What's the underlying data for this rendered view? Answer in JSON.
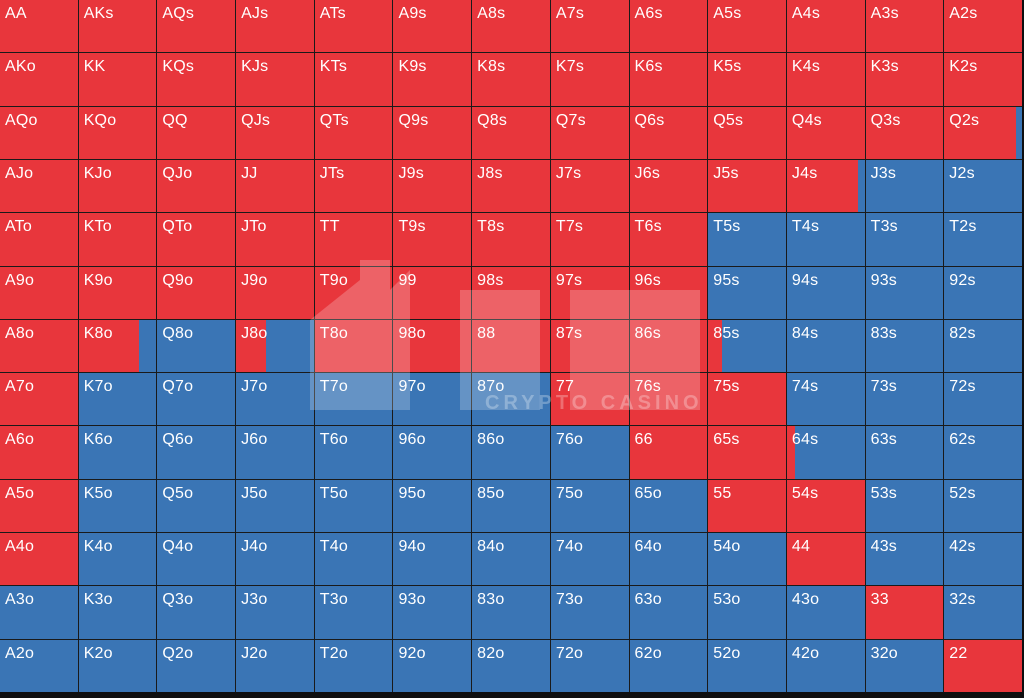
{
  "colors": {
    "raise": "#e8363c",
    "fold": "#3a75b5"
  },
  "grid": [
    [
      "AA",
      "AKs",
      "AQs",
      "AJs",
      "ATs",
      "A9s",
      "A8s",
      "A7s",
      "A6s",
      "A5s",
      "A4s",
      "A3s",
      "A2s"
    ],
    [
      "AKo",
      "KK",
      "KQs",
      "KJs",
      "KTs",
      "K9s",
      "K8s",
      "K7s",
      "K6s",
      "K5s",
      "K4s",
      "K3s",
      "K2s"
    ],
    [
      "AQo",
      "KQo",
      "QQ",
      "QJs",
      "QTs",
      "Q9s",
      "Q8s",
      "Q7s",
      "Q6s",
      "Q5s",
      "Q4s",
      "Q3s",
      "Q2s"
    ],
    [
      "AJo",
      "KJo",
      "QJo",
      "JJ",
      "JTs",
      "J9s",
      "J8s",
      "J7s",
      "J6s",
      "J5s",
      "J4s",
      "J3s",
      "J2s"
    ],
    [
      "ATo",
      "KTo",
      "QTo",
      "JTo",
      "TT",
      "T9s",
      "T8s",
      "T7s",
      "T6s",
      "T5s",
      "T4s",
      "T3s",
      "T2s"
    ],
    [
      "A9o",
      "K9o",
      "Q9o",
      "J9o",
      "T9o",
      "99",
      "98s",
      "97s",
      "96s",
      "95s",
      "94s",
      "93s",
      "92s"
    ],
    [
      "A8o",
      "K8o",
      "Q8o",
      "J8o",
      "T8o",
      "98o",
      "88",
      "87s",
      "86s",
      "85s",
      "84s",
      "83s",
      "82s"
    ],
    [
      "A7o",
      "K7o",
      "Q7o",
      "J7o",
      "T7o",
      "97o",
      "87o",
      "77",
      "76s",
      "75s",
      "74s",
      "73s",
      "72s"
    ],
    [
      "A6o",
      "K6o",
      "Q6o",
      "J6o",
      "T6o",
      "96o",
      "86o",
      "76o",
      "66",
      "65s",
      "64s",
      "63s",
      "62s"
    ],
    [
      "A5o",
      "K5o",
      "Q5o",
      "J5o",
      "T5o",
      "95o",
      "85o",
      "75o",
      "65o",
      "55",
      "54s",
      "53s",
      "52s"
    ],
    [
      "A4o",
      "K4o",
      "Q4o",
      "J4o",
      "T4o",
      "94o",
      "84o",
      "74o",
      "64o",
      "54o",
      "44",
      "43s",
      "42s"
    ],
    [
      "A3o",
      "K3o",
      "Q3o",
      "J3o",
      "T3o",
      "93o",
      "83o",
      "73o",
      "63o",
      "53o",
      "43o",
      "33",
      "32s"
    ],
    [
      "A2o",
      "K2o",
      "Q2o",
      "J2o",
      "T2o",
      "92o",
      "82o",
      "72o",
      "62o",
      "52o",
      "42o",
      "32o",
      "22"
    ]
  ],
  "raise_fraction": [
    [
      1,
      1,
      1,
      1,
      1,
      1,
      1,
      1,
      1,
      1,
      1,
      1,
      1
    ],
    [
      1,
      1,
      1,
      1,
      1,
      1,
      1,
      1,
      1,
      1,
      1,
      1,
      1
    ],
    [
      1,
      1,
      1,
      1,
      1,
      1,
      1,
      1,
      1,
      1,
      1,
      1,
      0.92
    ],
    [
      1,
      1,
      1,
      1,
      1,
      1,
      1,
      1,
      1,
      1,
      0.92,
      0,
      0
    ],
    [
      1,
      1,
      1,
      1,
      1,
      1,
      1,
      1,
      1,
      0,
      0,
      0,
      0
    ],
    [
      1,
      1,
      1,
      1,
      1,
      1,
      1,
      1,
      1,
      0,
      0,
      0,
      0
    ],
    [
      1,
      0.78,
      0,
      0.38,
      1,
      1,
      1,
      1,
      1,
      0.18,
      0,
      0,
      0
    ],
    [
      1,
      0,
      0,
      0,
      0,
      0,
      0,
      1,
      1,
      1,
      0,
      0,
      0
    ],
    [
      1,
      0,
      0,
      0,
      0,
      0,
      0,
      0,
      1,
      1,
      0.1,
      0,
      0
    ],
    [
      1,
      0,
      0,
      0,
      0,
      0,
      0,
      0,
      0,
      1,
      1,
      0,
      0
    ],
    [
      1,
      0,
      0,
      0,
      0,
      0,
      0,
      0,
      0,
      0,
      1,
      0,
      0
    ],
    [
      0,
      0,
      0,
      0,
      0,
      0,
      0,
      0,
      0,
      0,
      0,
      1,
      0
    ],
    [
      0,
      0,
      0,
      0,
      0,
      0,
      0,
      0,
      0,
      0,
      0,
      0,
      1
    ]
  ],
  "watermark": {
    "text": "CRYPTO CASINO"
  }
}
